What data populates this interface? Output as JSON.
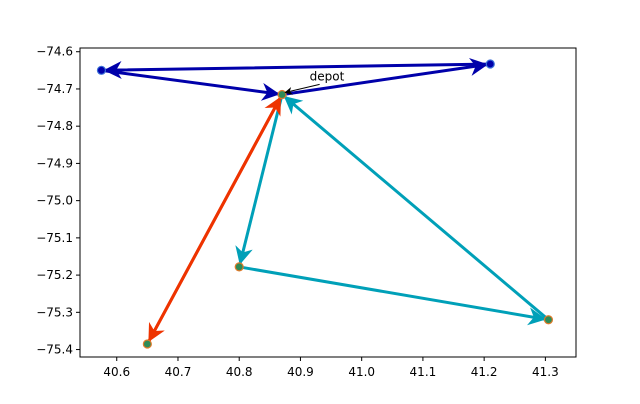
{
  "chart_data": {
    "type": "scatter",
    "title": "",
    "xlabel": "",
    "ylabel": "",
    "xlim": [
      40.54,
      41.35
    ],
    "ylim": [
      -75.42,
      -74.59
    ],
    "xticks": [
      40.6,
      40.7,
      40.8,
      40.9,
      41.0,
      41.1,
      41.2,
      41.3
    ],
    "yticks": [
      -74.6,
      -74.7,
      -74.8,
      -74.9,
      -75.0,
      -75.1,
      -75.2,
      -75.3,
      -75.4
    ],
    "grid": false,
    "points": [
      {
        "id": "depot",
        "x": 40.87,
        "y": -74.715,
        "fill": "#2e8b57",
        "edge": "#e07a2a"
      },
      {
        "id": "p1",
        "x": 41.21,
        "y": -74.633,
        "fill": "#0000aa",
        "edge": "#3a6fd8"
      },
      {
        "id": "p2",
        "x": 40.575,
        "y": -74.65,
        "fill": "#0000aa",
        "edge": "#3a6fd8"
      },
      {
        "id": "p3",
        "x": 40.8,
        "y": -75.178,
        "fill": "#2e8b57",
        "edge": "#e07a2a"
      },
      {
        "id": "p4",
        "x": 41.305,
        "y": -75.32,
        "fill": "#2e8b57",
        "edge": "#e07a2a"
      },
      {
        "id": "p5",
        "x": 40.65,
        "y": -75.385,
        "fill": "#2e8b57",
        "edge": "#e07a2a"
      }
    ],
    "routes": [
      {
        "color": "#0000aa",
        "legs": [
          [
            "depot",
            "p1"
          ],
          [
            "p1",
            "p2"
          ],
          [
            "p2",
            "depot"
          ]
        ]
      },
      {
        "color": "#00a0b8",
        "legs": [
          [
            "depot",
            "p3"
          ],
          [
            "p3",
            "p4"
          ],
          [
            "p4",
            "depot"
          ]
        ]
      },
      {
        "color": "#ee3300",
        "legs": [
          [
            "depot",
            "p5"
          ],
          [
            "p5",
            "depot"
          ]
        ]
      }
    ],
    "annotation": {
      "text": "depot",
      "target": "depot",
      "dx": 0.045,
      "dy": 0.038
    }
  }
}
